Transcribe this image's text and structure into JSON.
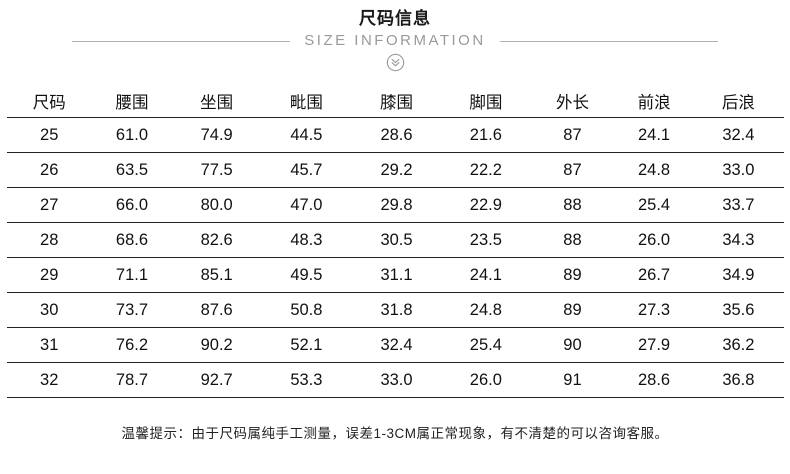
{
  "header": {
    "title": "尺码信息",
    "subtitle": "SIZE INFORMATION",
    "icon": "double-chevron-down-icon"
  },
  "table": {
    "columns": [
      "尺码",
      "腰围",
      "坐围",
      "毗围",
      "膝围",
      "脚围",
      "外长",
      "前浪",
      "后浪"
    ],
    "rows": [
      [
        "25",
        "61.0",
        "74.9",
        "44.5",
        "28.6",
        "21.6",
        "87",
        "24.1",
        "32.4"
      ],
      [
        "26",
        "63.5",
        "77.5",
        "45.7",
        "29.2",
        "22.2",
        "87",
        "24.8",
        "33.0"
      ],
      [
        "27",
        "66.0",
        "80.0",
        "47.0",
        "29.8",
        "22.9",
        "88",
        "25.4",
        "33.7"
      ],
      [
        "28",
        "68.6",
        "82.6",
        "48.3",
        "30.5",
        "23.5",
        "88",
        "26.0",
        "34.3"
      ],
      [
        "29",
        "71.1",
        "85.1",
        "49.5",
        "31.1",
        "24.1",
        "89",
        "26.7",
        "34.9"
      ],
      [
        "30",
        "73.7",
        "87.6",
        "50.8",
        "31.8",
        "24.8",
        "89",
        "27.3",
        "35.6"
      ],
      [
        "31",
        "76.2",
        "90.2",
        "52.1",
        "32.4",
        "25.4",
        "90",
        "27.9",
        "36.2"
      ],
      [
        "32",
        "78.7",
        "92.7",
        "53.3",
        "33.0",
        "26.0",
        "91",
        "28.6",
        "36.8"
      ]
    ]
  },
  "footer": {
    "note": "温馨提示：由于尺码属纯手工测量，误差1-3CM属正常现象，有不清楚的可以咨询客服。"
  },
  "colors": {
    "title": "#1a1a1a",
    "subtitle": "#9a9a9a",
    "table_text": "#111111",
    "row_divider": "#222222",
    "side_line": "#b3b3b3"
  }
}
